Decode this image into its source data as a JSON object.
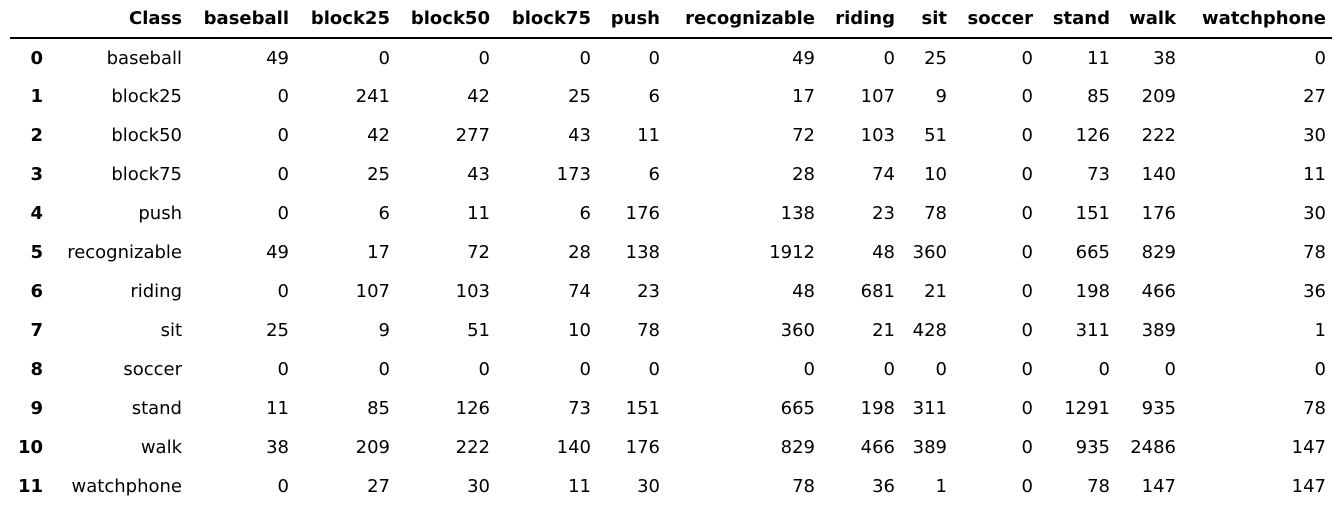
{
  "chart_data": {
    "type": "table",
    "index_header": "",
    "columns": [
      "Class",
      "baseball",
      "block25",
      "block50",
      "block75",
      "push",
      "recognizable",
      "riding",
      "sit",
      "soccer",
      "stand",
      "walk",
      "watchphone"
    ],
    "rows": [
      {
        "index": "0",
        "cells": [
          "baseball",
          "49",
          "0",
          "0",
          "0",
          "0",
          "49",
          "0",
          "25",
          "0",
          "11",
          "38",
          "0"
        ]
      },
      {
        "index": "1",
        "cells": [
          "block25",
          "0",
          "241",
          "42",
          "25",
          "6",
          "17",
          "107",
          "9",
          "0",
          "85",
          "209",
          "27"
        ]
      },
      {
        "index": "2",
        "cells": [
          "block50",
          "0",
          "42",
          "277",
          "43",
          "11",
          "72",
          "103",
          "51",
          "0",
          "126",
          "222",
          "30"
        ]
      },
      {
        "index": "3",
        "cells": [
          "block75",
          "0",
          "25",
          "43",
          "173",
          "6",
          "28",
          "74",
          "10",
          "0",
          "73",
          "140",
          "11"
        ]
      },
      {
        "index": "4",
        "cells": [
          "push",
          "0",
          "6",
          "11",
          "6",
          "176",
          "138",
          "23",
          "78",
          "0",
          "151",
          "176",
          "30"
        ]
      },
      {
        "index": "5",
        "cells": [
          "recognizable",
          "49",
          "17",
          "72",
          "28",
          "138",
          "1912",
          "48",
          "360",
          "0",
          "665",
          "829",
          "78"
        ]
      },
      {
        "index": "6",
        "cells": [
          "riding",
          "0",
          "107",
          "103",
          "74",
          "23",
          "48",
          "681",
          "21",
          "0",
          "198",
          "466",
          "36"
        ]
      },
      {
        "index": "7",
        "cells": [
          "sit",
          "25",
          "9",
          "51",
          "10",
          "78",
          "360",
          "21",
          "428",
          "0",
          "311",
          "389",
          "1"
        ]
      },
      {
        "index": "8",
        "cells": [
          "soccer",
          "0",
          "0",
          "0",
          "0",
          "0",
          "0",
          "0",
          "0",
          "0",
          "0",
          "0",
          "0"
        ]
      },
      {
        "index": "9",
        "cells": [
          "stand",
          "11",
          "85",
          "126",
          "73",
          "151",
          "665",
          "198",
          "311",
          "0",
          "1291",
          "935",
          "78"
        ]
      },
      {
        "index": "10",
        "cells": [
          "walk",
          "38",
          "209",
          "222",
          "140",
          "176",
          "829",
          "466",
          "389",
          "0",
          "935",
          "2486",
          "147"
        ]
      },
      {
        "index": "11",
        "cells": [
          "watchphone",
          "0",
          "27",
          "30",
          "11",
          "30",
          "78",
          "36",
          "1",
          "0",
          "78",
          "147",
          "147"
        ]
      }
    ]
  }
}
